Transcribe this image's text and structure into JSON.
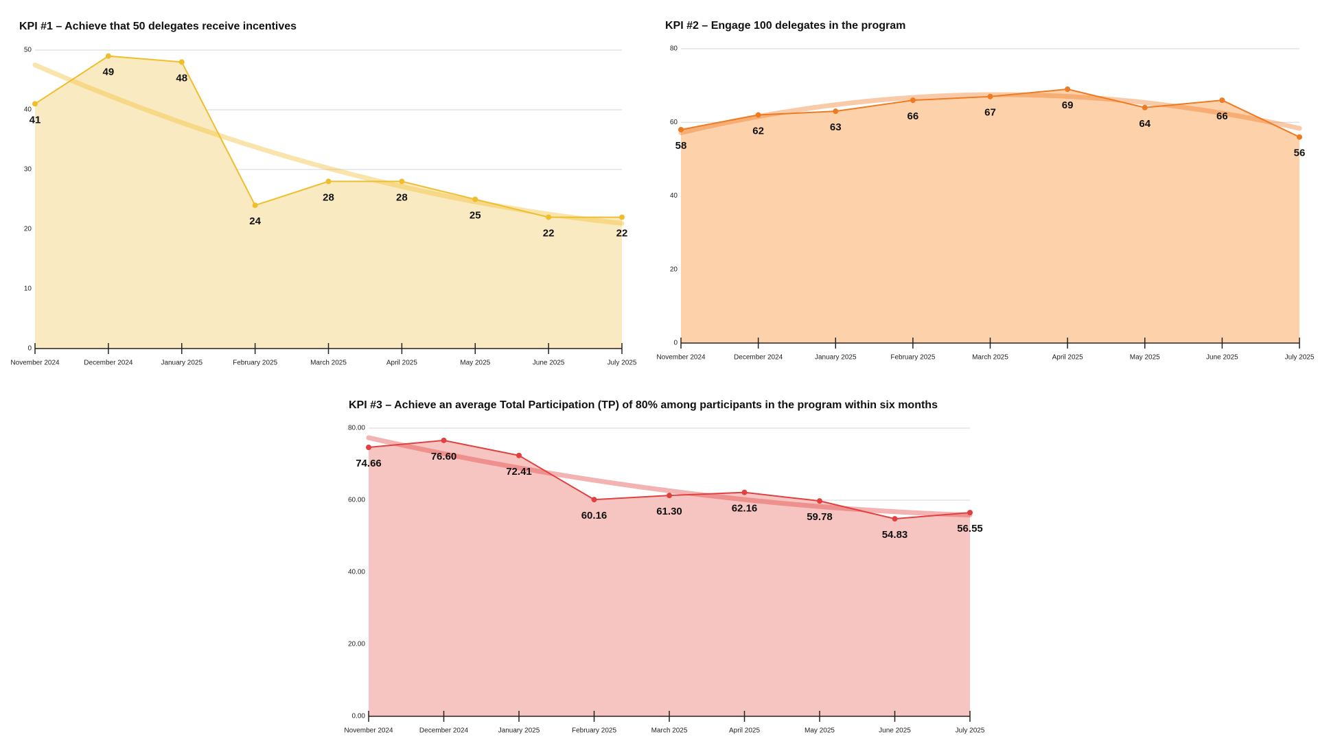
{
  "chart_data": [
    {
      "type": "area",
      "title": "KPI #1 – Achieve that 50 delegates receive incentives",
      "categories": [
        "November 2024",
        "December 2024",
        "January 2025",
        "February 2025",
        "March 2025",
        "April 2025",
        "May 2025",
        "June 2025",
        "July 2025"
      ],
      "values": [
        41,
        49,
        48,
        24,
        28,
        28,
        25,
        22,
        22
      ],
      "color": "#efbe2c",
      "area_color": "#faeac1",
      "trendline": true,
      "grid": true,
      "ylim": [
        0,
        50
      ],
      "yticks": [
        0,
        10,
        20,
        30,
        40,
        50
      ]
    },
    {
      "type": "area",
      "title": "KPI #2 – Engage 100 delegates in the program",
      "categories": [
        "November 2024",
        "December 2024",
        "January 2025",
        "February 2025",
        "March 2025",
        "April 2025",
        "May 2025",
        "June 2025",
        "July 2025"
      ],
      "values": [
        58,
        62,
        63,
        66,
        67,
        69,
        64,
        66,
        56
      ],
      "color": "#ee7a22",
      "area_color": "#fdd1aa",
      "trendline": true,
      "grid": true,
      "ylim": [
        0,
        80
      ],
      "yticks": [
        0,
        20,
        40,
        60,
        80
      ]
    },
    {
      "type": "area",
      "title": "KPI #3 – Achieve an average Total Participation (TP) of 80% among participants in the program within six months",
      "categories": [
        "November 2024",
        "December 2024",
        "January 2025",
        "February 2025",
        "March 2025",
        "April 2025",
        "May 2025",
        "June 2025",
        "July 2025"
      ],
      "values": [
        74.66,
        76.6,
        72.41,
        60.16,
        61.3,
        62.16,
        59.78,
        54.83,
        56.55
      ],
      "value_labels": [
        "74.66",
        "76.60",
        "72.41",
        "60.16",
        "61.30",
        "62.16",
        "59.78",
        "54.83",
        "56.55"
      ],
      "color": "#e0403f",
      "area_color": "#f7c5c1",
      "trendline": true,
      "grid": true,
      "ylim": [
        0,
        80
      ],
      "yticks": [
        {
          "value": 0,
          "label": "0.00"
        },
        {
          "value": 20,
          "label": "20.00"
        },
        {
          "value": 40,
          "label": "40.00"
        },
        {
          "value": 60,
          "label": "60.00"
        },
        {
          "value": 80,
          "label": "80.00"
        }
      ]
    }
  ]
}
